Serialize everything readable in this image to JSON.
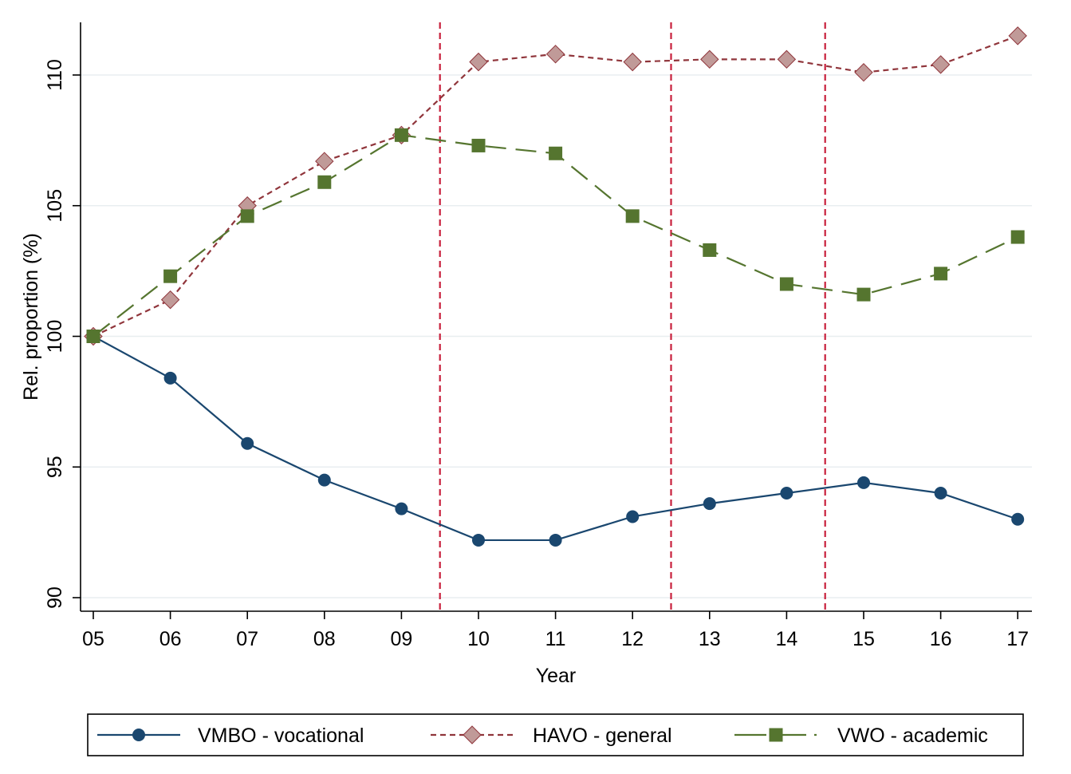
{
  "chart_data": {
    "type": "line",
    "title": "",
    "xlabel": "Year",
    "ylabel": "Rel. proportion (%)",
    "categories": [
      "05",
      "06",
      "07",
      "08",
      "09",
      "10",
      "11",
      "12",
      "13",
      "14",
      "15",
      "16",
      "17"
    ],
    "ylim": [
      89.5,
      112
    ],
    "yticks": [
      90,
      95,
      100,
      105,
      110
    ],
    "grid": true,
    "reference_lines_x": [
      9.5,
      12.5,
      14.5
    ],
    "reference_line_color": "#c8203c",
    "legend_position": "bottom",
    "series": [
      {
        "name": "VMBO - vocational",
        "values": [
          100.0,
          98.4,
          95.9,
          94.5,
          93.4,
          92.2,
          92.2,
          93.1,
          93.6,
          94.0,
          94.4,
          94.0,
          93.0
        ],
        "color": "#1a476f",
        "marker": "circle",
        "line_style": "solid"
      },
      {
        "name": "HAVO - general",
        "values": [
          100.0,
          101.4,
          105.0,
          106.7,
          107.7,
          110.5,
          110.8,
          110.5,
          110.6,
          110.6,
          110.1,
          110.4,
          111.5
        ],
        "color": "#90353b",
        "marker_fill": "#c09a98",
        "marker": "diamond",
        "line_style": "short-dash"
      },
      {
        "name": "VWO - academic",
        "values": [
          100.0,
          102.3,
          104.6,
          105.9,
          107.7,
          107.3,
          107.0,
          104.6,
          103.3,
          102.0,
          101.6,
          102.4,
          103.8
        ],
        "color": "#55752f",
        "marker": "square",
        "line_style": "long-dash"
      }
    ]
  }
}
